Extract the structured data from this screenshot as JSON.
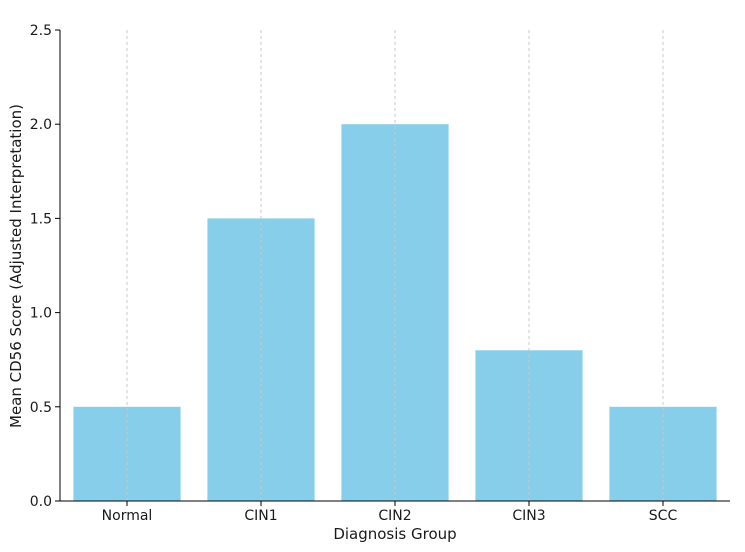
{
  "chart_data": {
    "type": "bar",
    "categories": [
      "Normal",
      "CIN1",
      "CIN2",
      "CIN3",
      "SCC"
    ],
    "values": [
      0.5,
      1.5,
      2.0,
      0.8,
      0.5
    ],
    "title": "",
    "xlabel": "Diagnosis Group",
    "ylabel": "Mean CD56 Score (Adjusted Interpretation)",
    "ylim": [
      0,
      2.5
    ],
    "yticks": [
      "0.0",
      "0.5",
      "1.0",
      "1.5",
      "2.0",
      "2.5"
    ],
    "grid": "vertical dashed",
    "bar_color": "#87ceeb",
    "grid_color": "#c8c8c8",
    "axis_color": "#000000"
  }
}
